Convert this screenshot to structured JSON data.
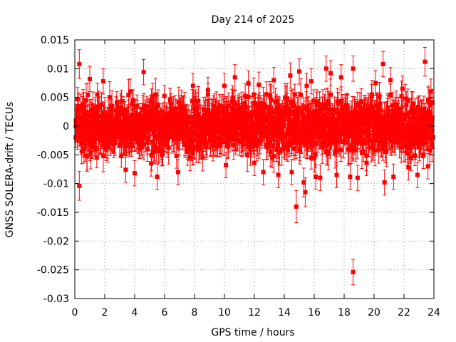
{
  "chart_data": {
    "type": "scatter",
    "title": "Day 214 of 2025",
    "xlabel": "GPS time / hours",
    "ylabel": "GNSS SOLERA-drift / TECUs",
    "xlim": [
      0,
      24
    ],
    "ylim": [
      -0.03,
      0.015
    ],
    "x_ticks": [
      0,
      2,
      4,
      6,
      8,
      10,
      12,
      14,
      16,
      18,
      20,
      22,
      24
    ],
    "y_ticks": [
      -0.03,
      -0.025,
      -0.02,
      -0.015,
      -0.01,
      -0.005,
      0,
      0.005,
      0.01,
      0.015
    ],
    "x_tick_labels": [
      "0",
      "2",
      "4",
      "6",
      "8",
      "10",
      "12",
      "14",
      "16",
      "18",
      "20",
      "22",
      "24"
    ],
    "y_tick_labels": [
      "-0.03",
      "-0.025",
      "-0.02",
      "-0.015",
      "-0.01",
      "-0.005",
      "0",
      "0.005",
      "0.01",
      "0.015"
    ],
    "grid": true,
    "marker": "square",
    "error_bars": true,
    "color": "#ff0000",
    "typical_error": 0.0022,
    "bulk_band": [
      -0.0055,
      0.0055
    ],
    "points": [
      {
        "x": 0.3,
        "y": 0.0108,
        "err": 0.0025
      },
      {
        "x": 0.3,
        "y": -0.0104,
        "err": 0.0025
      },
      {
        "x": 1.0,
        "y": 0.0082,
        "err": 0.0022
      },
      {
        "x": 1.9,
        "y": 0.0078,
        "err": 0.0022
      },
      {
        "x": 3.4,
        "y": -0.0076,
        "err": 0.0022
      },
      {
        "x": 3.7,
        "y": 0.006,
        "err": 0.0022
      },
      {
        "x": 4.0,
        "y": -0.0082,
        "err": 0.0022
      },
      {
        "x": 4.6,
        "y": 0.0094,
        "err": 0.0022
      },
      {
        "x": 5.1,
        "y": -0.0065,
        "err": 0.0022
      },
      {
        "x": 5.5,
        "y": -0.0088,
        "err": 0.0022
      },
      {
        "x": 6.9,
        "y": -0.008,
        "err": 0.0022
      },
      {
        "x": 7.9,
        "y": 0.007,
        "err": 0.0022
      },
      {
        "x": 8.9,
        "y": 0.0063,
        "err": 0.0022
      },
      {
        "x": 10.0,
        "y": 0.007,
        "err": 0.0022
      },
      {
        "x": 10.1,
        "y": -0.0068,
        "err": 0.0022
      },
      {
        "x": 10.7,
        "y": 0.0085,
        "err": 0.0022
      },
      {
        "x": 11.6,
        "y": 0.0074,
        "err": 0.0022
      },
      {
        "x": 12.0,
        "y": -0.0064,
        "err": 0.0022
      },
      {
        "x": 12.3,
        "y": 0.0072,
        "err": 0.0022
      },
      {
        "x": 12.6,
        "y": -0.008,
        "err": 0.0022
      },
      {
        "x": 13.3,
        "y": 0.008,
        "err": 0.0022
      },
      {
        "x": 13.6,
        "y": -0.0085,
        "err": 0.0022
      },
      {
        "x": 14.4,
        "y": 0.0088,
        "err": 0.0022
      },
      {
        "x": 14.5,
        "y": -0.008,
        "err": 0.0022
      },
      {
        "x": 14.8,
        "y": -0.014,
        "err": 0.0028
      },
      {
        "x": 15.0,
        "y": 0.0095,
        "err": 0.0022
      },
      {
        "x": 15.3,
        "y": -0.0098,
        "err": 0.0025
      },
      {
        "x": 15.4,
        "y": -0.0115,
        "err": 0.0025
      },
      {
        "x": 15.5,
        "y": 0.007,
        "err": 0.0022
      },
      {
        "x": 15.8,
        "y": 0.0078,
        "err": 0.0022
      },
      {
        "x": 16.1,
        "y": -0.0088,
        "err": 0.0022
      },
      {
        "x": 16.4,
        "y": -0.009,
        "err": 0.0022
      },
      {
        "x": 16.8,
        "y": 0.01,
        "err": 0.0022
      },
      {
        "x": 17.1,
        "y": 0.0092,
        "err": 0.0022
      },
      {
        "x": 17.5,
        "y": -0.0085,
        "err": 0.0022
      },
      {
        "x": 17.8,
        "y": 0.0085,
        "err": 0.0022
      },
      {
        "x": 18.4,
        "y": -0.0088,
        "err": 0.0022
      },
      {
        "x": 18.6,
        "y": 0.01,
        "err": 0.0022
      },
      {
        "x": 18.6,
        "y": -0.0254,
        "err": 0.0022
      },
      {
        "x": 18.9,
        "y": -0.009,
        "err": 0.0022
      },
      {
        "x": 19.5,
        "y": -0.0064,
        "err": 0.0022
      },
      {
        "x": 20.1,
        "y": 0.0075,
        "err": 0.0022
      },
      {
        "x": 20.6,
        "y": 0.0108,
        "err": 0.0022
      },
      {
        "x": 20.7,
        "y": -0.0098,
        "err": 0.0022
      },
      {
        "x": 21.1,
        "y": 0.008,
        "err": 0.0022
      },
      {
        "x": 21.3,
        "y": -0.0088,
        "err": 0.0022
      },
      {
        "x": 21.9,
        "y": 0.0065,
        "err": 0.0022
      },
      {
        "x": 22.3,
        "y": -0.0072,
        "err": 0.0022
      },
      {
        "x": 22.9,
        "y": -0.0085,
        "err": 0.0022
      },
      {
        "x": 23.4,
        "y": 0.0112,
        "err": 0.0025
      },
      {
        "x": 23.6,
        "y": -0.007,
        "err": 0.0022
      },
      {
        "x": 23.8,
        "y": 0.006,
        "err": 0.0022
      }
    ]
  }
}
